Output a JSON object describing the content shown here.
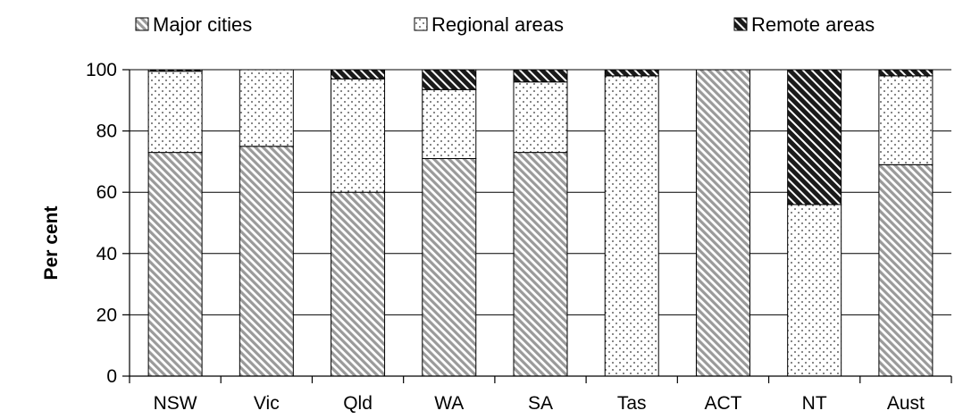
{
  "chart_data": {
    "type": "bar",
    "stacked": true,
    "title": "",
    "xlabel": "",
    "ylabel": "Per cent",
    "ylim": [
      0,
      100
    ],
    "yticks": [
      0,
      20,
      40,
      60,
      80,
      100
    ],
    "ytick_labels": [
      "0",
      "20",
      "40",
      "60",
      "80",
      "100"
    ],
    "grid": "horizontal",
    "legend_position": "top",
    "categories": [
      "NSW",
      "Vic",
      "Qld",
      "WA",
      "SA",
      "Tas",
      "ACT",
      "NT",
      "Aust"
    ],
    "series": [
      {
        "name": "Major cities",
        "values": [
          73,
          75,
          60,
          71,
          73,
          0,
          100,
          0,
          69
        ],
        "pattern": "diagonal-light"
      },
      {
        "name": "Regional areas",
        "values": [
          26.5,
          25,
          37,
          22.5,
          23,
          98,
          0,
          56,
          29
        ],
        "pattern": "dots"
      },
      {
        "name": "Remote areas",
        "values": [
          0.5,
          0,
          3,
          6.5,
          4,
          2,
          0,
          44,
          2
        ],
        "pattern": "diagonal-dark"
      }
    ],
    "colors": {
      "axis": "#000000",
      "grid": "#000000",
      "stroke": "#000000",
      "fill_light": "#d9d9d9",
      "fill_dark": "#222222"
    }
  }
}
